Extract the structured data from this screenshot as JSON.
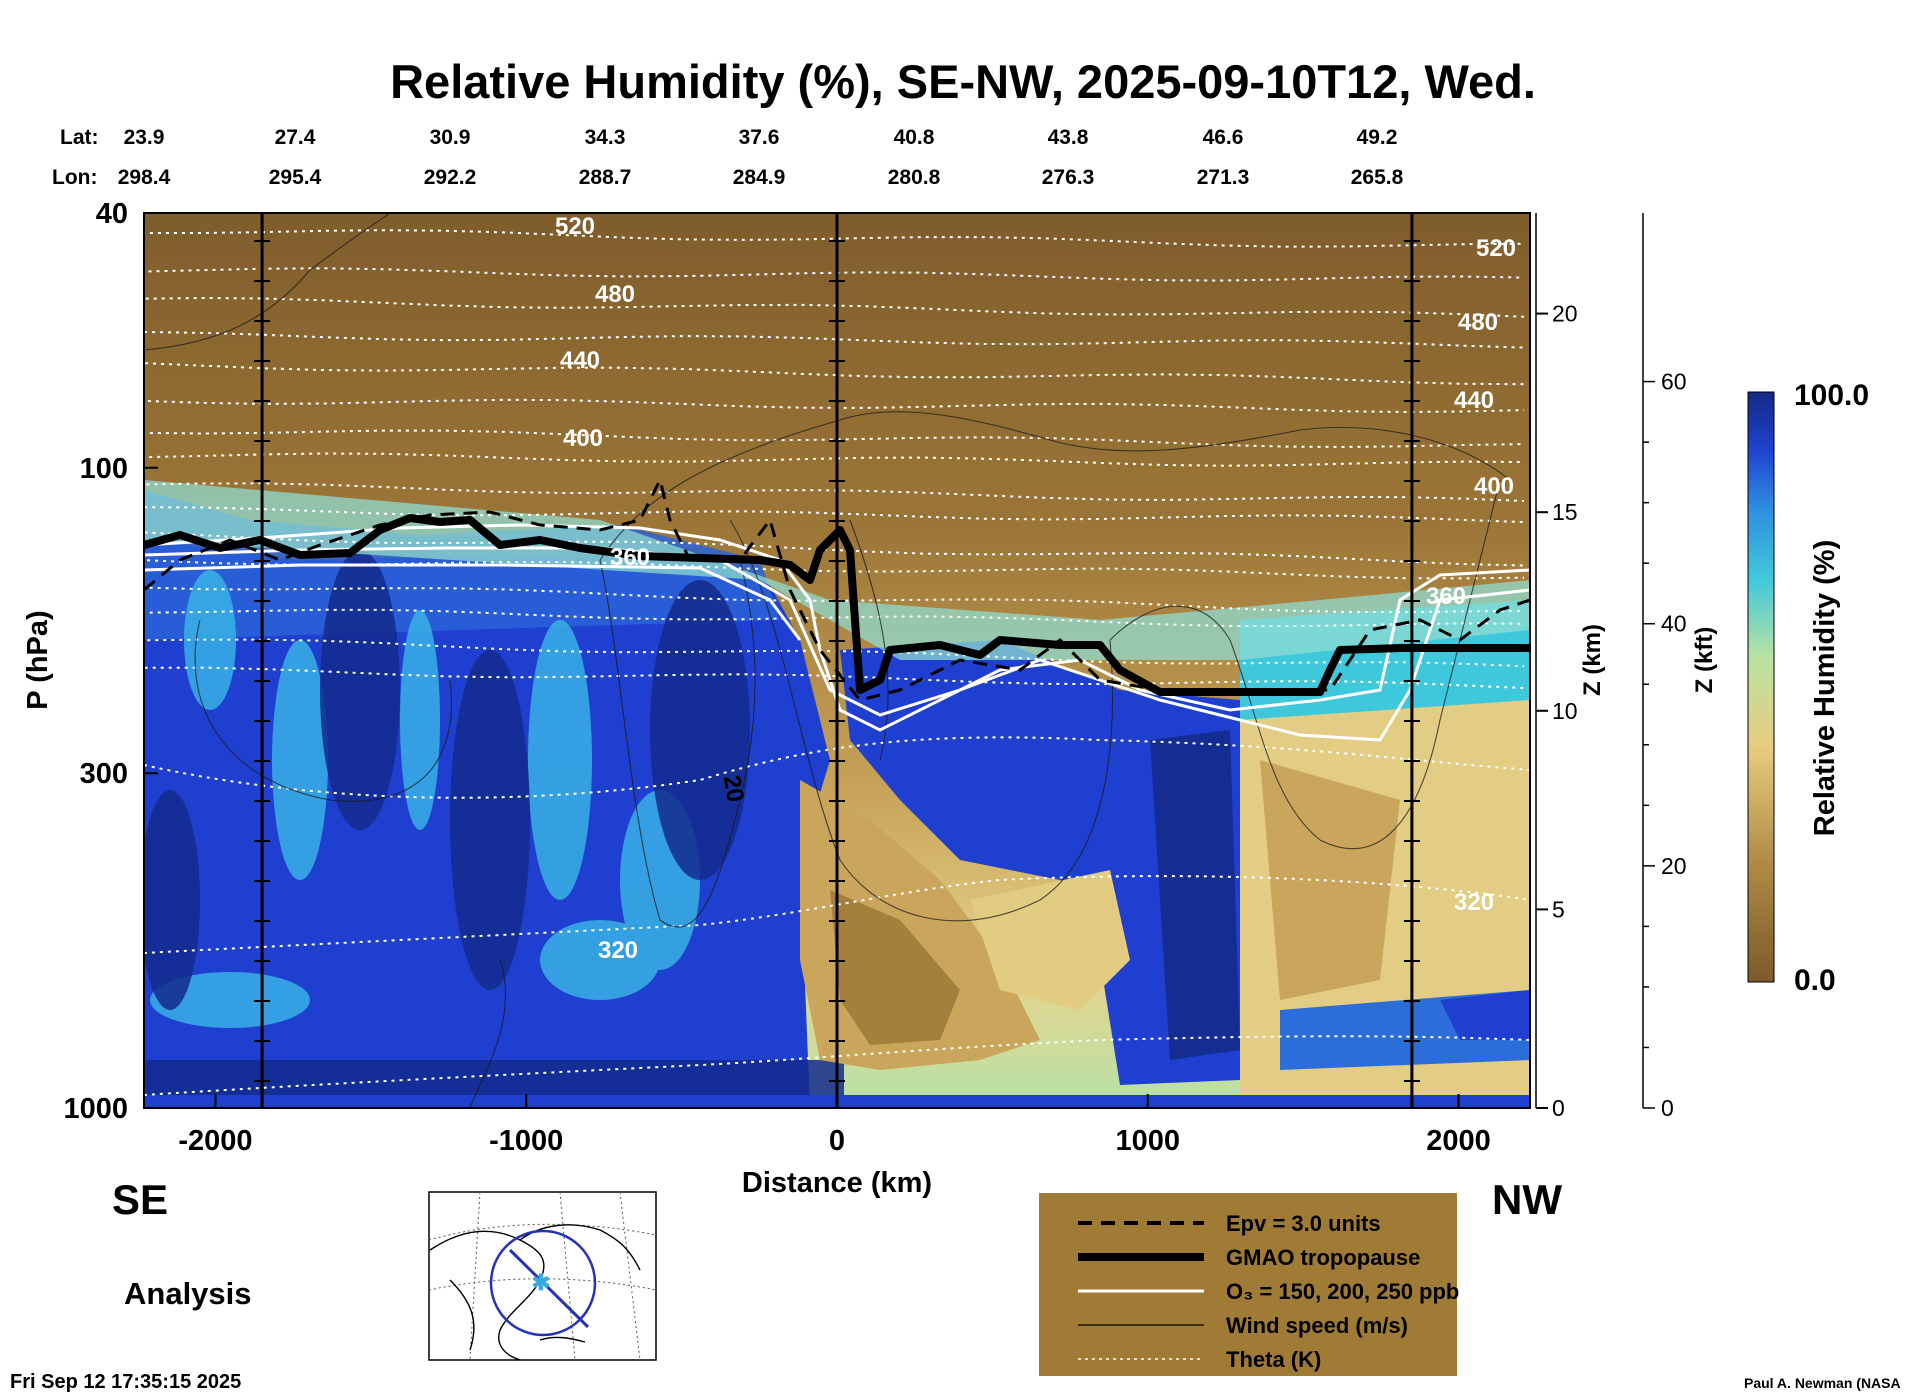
{
  "chart_data": {
    "type": "heatmap",
    "title": "Relative Humidity (%), SE-NW, 2025-09-10T12, Wed.",
    "xlabel": "Distance (km)",
    "ylabel": "P (hPa)",
    "z_km_label": "Z (km)",
    "z_kft_label": "Z (kft)",
    "colorbar_label": "Relative Humidity (%)",
    "colorbar_range": [
      0.0,
      100.0
    ],
    "colorbar_min_label": "0.0",
    "colorbar_max_label": "100.0",
    "xlim": [
      -2230,
      2230
    ],
    "ylim_hpa": [
      1000,
      40
    ],
    "y_log_scale": true,
    "x_ticks": [
      -2000,
      -1000,
      0,
      1000,
      2000
    ],
    "p_ticks": [
      40,
      100,
      300,
      1000
    ],
    "z_km_ticks": [
      0,
      5,
      10,
      15,
      20
    ],
    "z_kft_ticks": [
      0,
      20,
      40,
      60
    ],
    "lat_label": "Lat:",
    "lon_label": "Lon:",
    "lat_values": [
      "23.9",
      "27.4",
      "30.9",
      "34.3",
      "37.6",
      "40.8",
      "43.8",
      "46.6",
      "49.2"
    ],
    "lon_values": [
      "298.4",
      "295.4",
      "292.2",
      "288.7",
      "284.9",
      "280.8",
      "276.3",
      "271.3",
      "265.8"
    ],
    "vertical_lines_km": [
      -1850,
      0,
      1850
    ],
    "left_end": "SE",
    "right_end": "NW",
    "theta_labels": [
      "520",
      "480",
      "440",
      "400",
      "360",
      "320",
      "520",
      "480",
      "440",
      "400",
      "360",
      "320"
    ],
    "wind_label": "20",
    "legend": [
      {
        "label": "Epv = 3.0 units",
        "style": "dashed-black"
      },
      {
        "label": "GMAO tropopause",
        "style": "thick-black"
      },
      {
        "label": "O₃ = 150, 200, 250 ppb",
        "style": "white"
      },
      {
        "label": "Wind speed (m/s)",
        "style": "thin-black"
      },
      {
        "label": "Theta (K)",
        "style": "dotted-white"
      }
    ],
    "colors": {
      "brown_dark": "#7d5a2a",
      "tan": "#c8a45a",
      "cream": "#e8d890",
      "cyan": "#36c6e0",
      "blue": "#1f3fd0",
      "navy": "#14238c",
      "legend_bg": "#a07b35"
    }
  },
  "analysis_label": "Analysis",
  "timestamp": "Fri Sep 12 17:35:15 2025",
  "credit": "Paul A. Newman (NASA"
}
